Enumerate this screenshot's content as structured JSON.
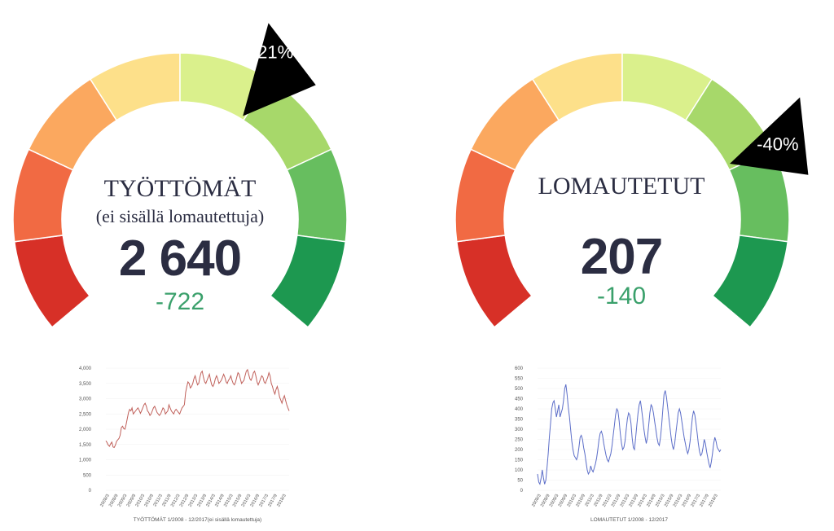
{
  "gauges": [
    {
      "title": "TYÖTTÖMÄT",
      "subtitle": "(ei sisällä lomautettuja)",
      "value": "2 640",
      "delta": "-722",
      "indicator_label": "-21%",
      "indicator_fraction": 0.62,
      "segment_colors": [
        "#d73027",
        "#f16a43",
        "#fba85f",
        "#fde08a",
        "#daf08c",
        "#a7d86a",
        "#67be5f",
        "#1d9850"
      ]
    },
    {
      "title": "LOMAUTETUT",
      "subtitle": "",
      "value": "207",
      "delta": "-140",
      "indicator_label": "-40%",
      "indicator_fraction": 0.74,
      "segment_colors": [
        "#d73027",
        "#f16a43",
        "#fba85f",
        "#fde08a",
        "#daf08c",
        "#a7d86a",
        "#67be5f",
        "#1d9850"
      ]
    }
  ],
  "chart_data": [
    {
      "type": "line",
      "color": "#c0605a",
      "xlabel": "TYÖTTÖMÄT 1/2008 - 12/2017(ei sisällä lomautettuja)",
      "ylim": [
        0,
        4000
      ],
      "yticks": [
        "0",
        "500",
        "1,000",
        "1,500",
        "2,000",
        "2,500",
        "3,000",
        "3,500",
        "4,000"
      ],
      "xticks": [
        "2008/3",
        "2008/9",
        "2009/3",
        "2009/9",
        "2010/3",
        "2010/9",
        "2011/3",
        "2011/9",
        "2012/3",
        "2012/9",
        "2013/3",
        "2013/9",
        "2014/3",
        "2014/9",
        "2015/3",
        "2015/9",
        "2016/3",
        "2016/9",
        "2017/3",
        "2017/9",
        "2018/3"
      ],
      "values": [
        1620,
        1560,
        1480,
        1440,
        1520,
        1580,
        1420,
        1400,
        1480,
        1600,
        1650,
        1700,
        1800,
        2050,
        2100,
        2020,
        2000,
        2150,
        2350,
        2550,
        2650,
        2600,
        2700,
        2500,
        2550,
        2600,
        2650,
        2700,
        2620,
        2520,
        2600,
        2700,
        2800,
        2850,
        2750,
        2600,
        2550,
        2450,
        2500,
        2600,
        2700,
        2750,
        2650,
        2550,
        2500,
        2450,
        2500,
        2600,
        2700,
        2650,
        2500,
        2550,
        2600,
        2800,
        2700,
        2600,
        2550,
        2500,
        2600,
        2650,
        2600,
        2550,
        2500,
        2600,
        2700,
        2750,
        2800,
        3200,
        3400,
        3550,
        3500,
        3350,
        3400,
        3500,
        3650,
        3750,
        3600,
        3450,
        3500,
        3700,
        3850,
        3900,
        3700,
        3550,
        3500,
        3600,
        3700,
        3800,
        3600,
        3450,
        3400,
        3500,
        3650,
        3750,
        3650,
        3500,
        3550,
        3600,
        3700,
        3800,
        3700,
        3550,
        3500,
        3600,
        3650,
        3750,
        3600,
        3500,
        3450,
        3550,
        3700,
        3850,
        3800,
        3650,
        3500,
        3550,
        3600,
        3750,
        3900,
        3950,
        3800,
        3650,
        3600,
        3700,
        3850,
        3900,
        3750,
        3550,
        3450,
        3550,
        3650,
        3750,
        3700,
        3550,
        3500,
        3600,
        3700,
        3850,
        3750,
        3500,
        3400,
        3250,
        3150,
        3300,
        3400,
        3250,
        3050,
        2950,
        2850,
        3000,
        3100,
        2950,
        2800,
        2700,
        2600
      ]
    },
    {
      "type": "line",
      "color": "#5b6dc8",
      "xlabel": "LOMAUTETUT 1/2008 - 12/2017",
      "ylim": [
        0,
        600
      ],
      "yticks": [
        "0",
        "50",
        "100",
        "150",
        "200",
        "250",
        "300",
        "350",
        "400",
        "450",
        "500",
        "550",
        "600"
      ],
      "xticks": [
        "2008/3",
        "2008/9",
        "2009/3",
        "2009/9",
        "2010/3",
        "2010/9",
        "2011/3",
        "2011/9",
        "2012/3",
        "2012/9",
        "2013/3",
        "2013/9",
        "2014/3",
        "2014/9",
        "2015/3",
        "2015/9",
        "2016/3",
        "2016/9",
        "2017/3",
        "2017/9",
        "2018/3"
      ],
      "values": [
        80,
        40,
        30,
        60,
        100,
        60,
        30,
        50,
        110,
        180,
        260,
        330,
        400,
        430,
        440,
        400,
        360,
        390,
        420,
        360,
        380,
        400,
        440,
        500,
        520,
        470,
        410,
        360,
        300,
        240,
        200,
        170,
        160,
        150,
        170,
        210,
        260,
        270,
        250,
        210,
        180,
        140,
        100,
        80,
        90,
        120,
        100,
        90,
        110,
        130,
        160,
        200,
        250,
        280,
        290,
        270,
        230,
        200,
        170,
        150,
        140,
        160,
        180,
        220,
        270,
        320,
        370,
        400,
        390,
        340,
        280,
        230,
        200,
        210,
        240,
        300,
        350,
        380,
        370,
        330,
        260,
        210,
        200,
        260,
        320,
        380,
        420,
        440,
        400,
        350,
        300,
        260,
        230,
        260,
        320,
        380,
        420,
        410,
        380,
        340,
        300,
        260,
        230,
        220,
        260,
        320,
        400,
        470,
        490,
        460,
        410,
        360,
        310,
        260,
        220,
        200,
        230,
        280,
        330,
        380,
        400,
        380,
        340,
        300,
        260,
        230,
        200,
        180,
        200,
        240,
        300,
        360,
        390,
        370,
        330,
        280,
        230,
        190,
        170,
        180,
        210,
        250,
        230,
        190,
        160,
        130,
        110,
        140,
        180,
        230,
        260,
        240,
        210,
        200,
        190,
        200
      ]
    }
  ]
}
